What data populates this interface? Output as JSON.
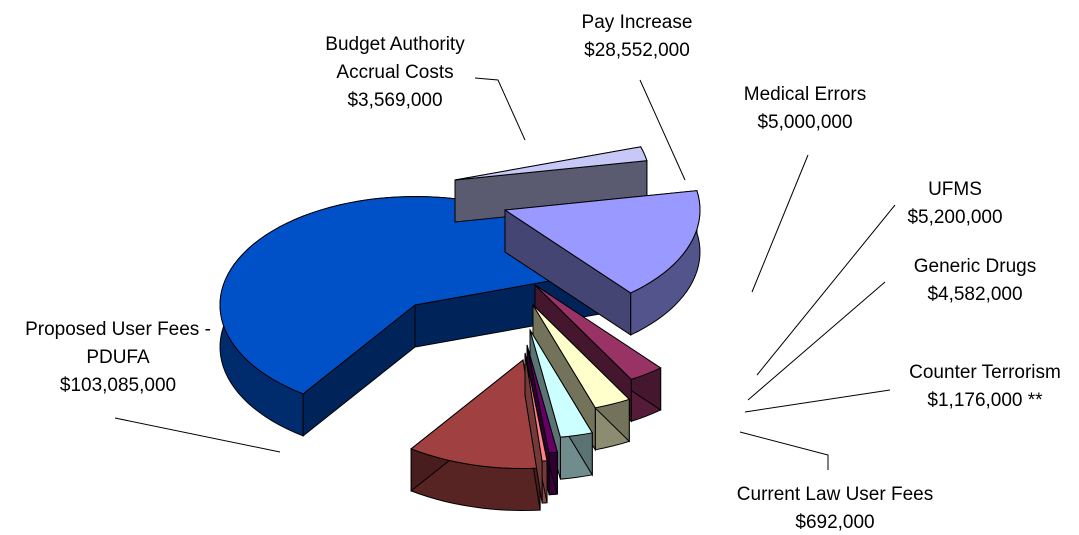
{
  "chart_data": {
    "type": "pie",
    "style": "3d-exploded",
    "title": "",
    "legend": "none",
    "slices": [
      {
        "label": [
          "Proposed User Fees -",
          "PDUFA",
          "$103,085,000"
        ],
        "value": 103085000,
        "color": "#0050C8"
      },
      {
        "label": [
          "Budget Authority",
          "Accrual Costs",
          "$3,569,000"
        ],
        "value": 3569000,
        "color": "#C8C8F8"
      },
      {
        "label": [
          "Pay Increase",
          "$28,552,000"
        ],
        "value": 28552000,
        "color": "#9999FF"
      },
      {
        "label": [
          "Medical Errors",
          "$5,000,000"
        ],
        "value": 5000000,
        "color": "#993366"
      },
      {
        "label": [
          "UFMS",
          "$5,200,000"
        ],
        "value": 5200000,
        "color": "#FFFFCC"
      },
      {
        "label": [
          "Generic Drugs",
          "$4,582,000"
        ],
        "value": 4582000,
        "color": "#CCFFFF"
      },
      {
        "label": [
          "Counter Terrorism",
          "$1,176,000  **"
        ],
        "value": 1176000,
        "color": "#660066"
      },
      {
        "label": [
          "Current Law User Fees",
          "$692,000"
        ],
        "value": 692000,
        "color": "#FF8080"
      }
    ],
    "extra_slice": {
      "value": 19000000,
      "color": "#A04040"
    }
  }
}
